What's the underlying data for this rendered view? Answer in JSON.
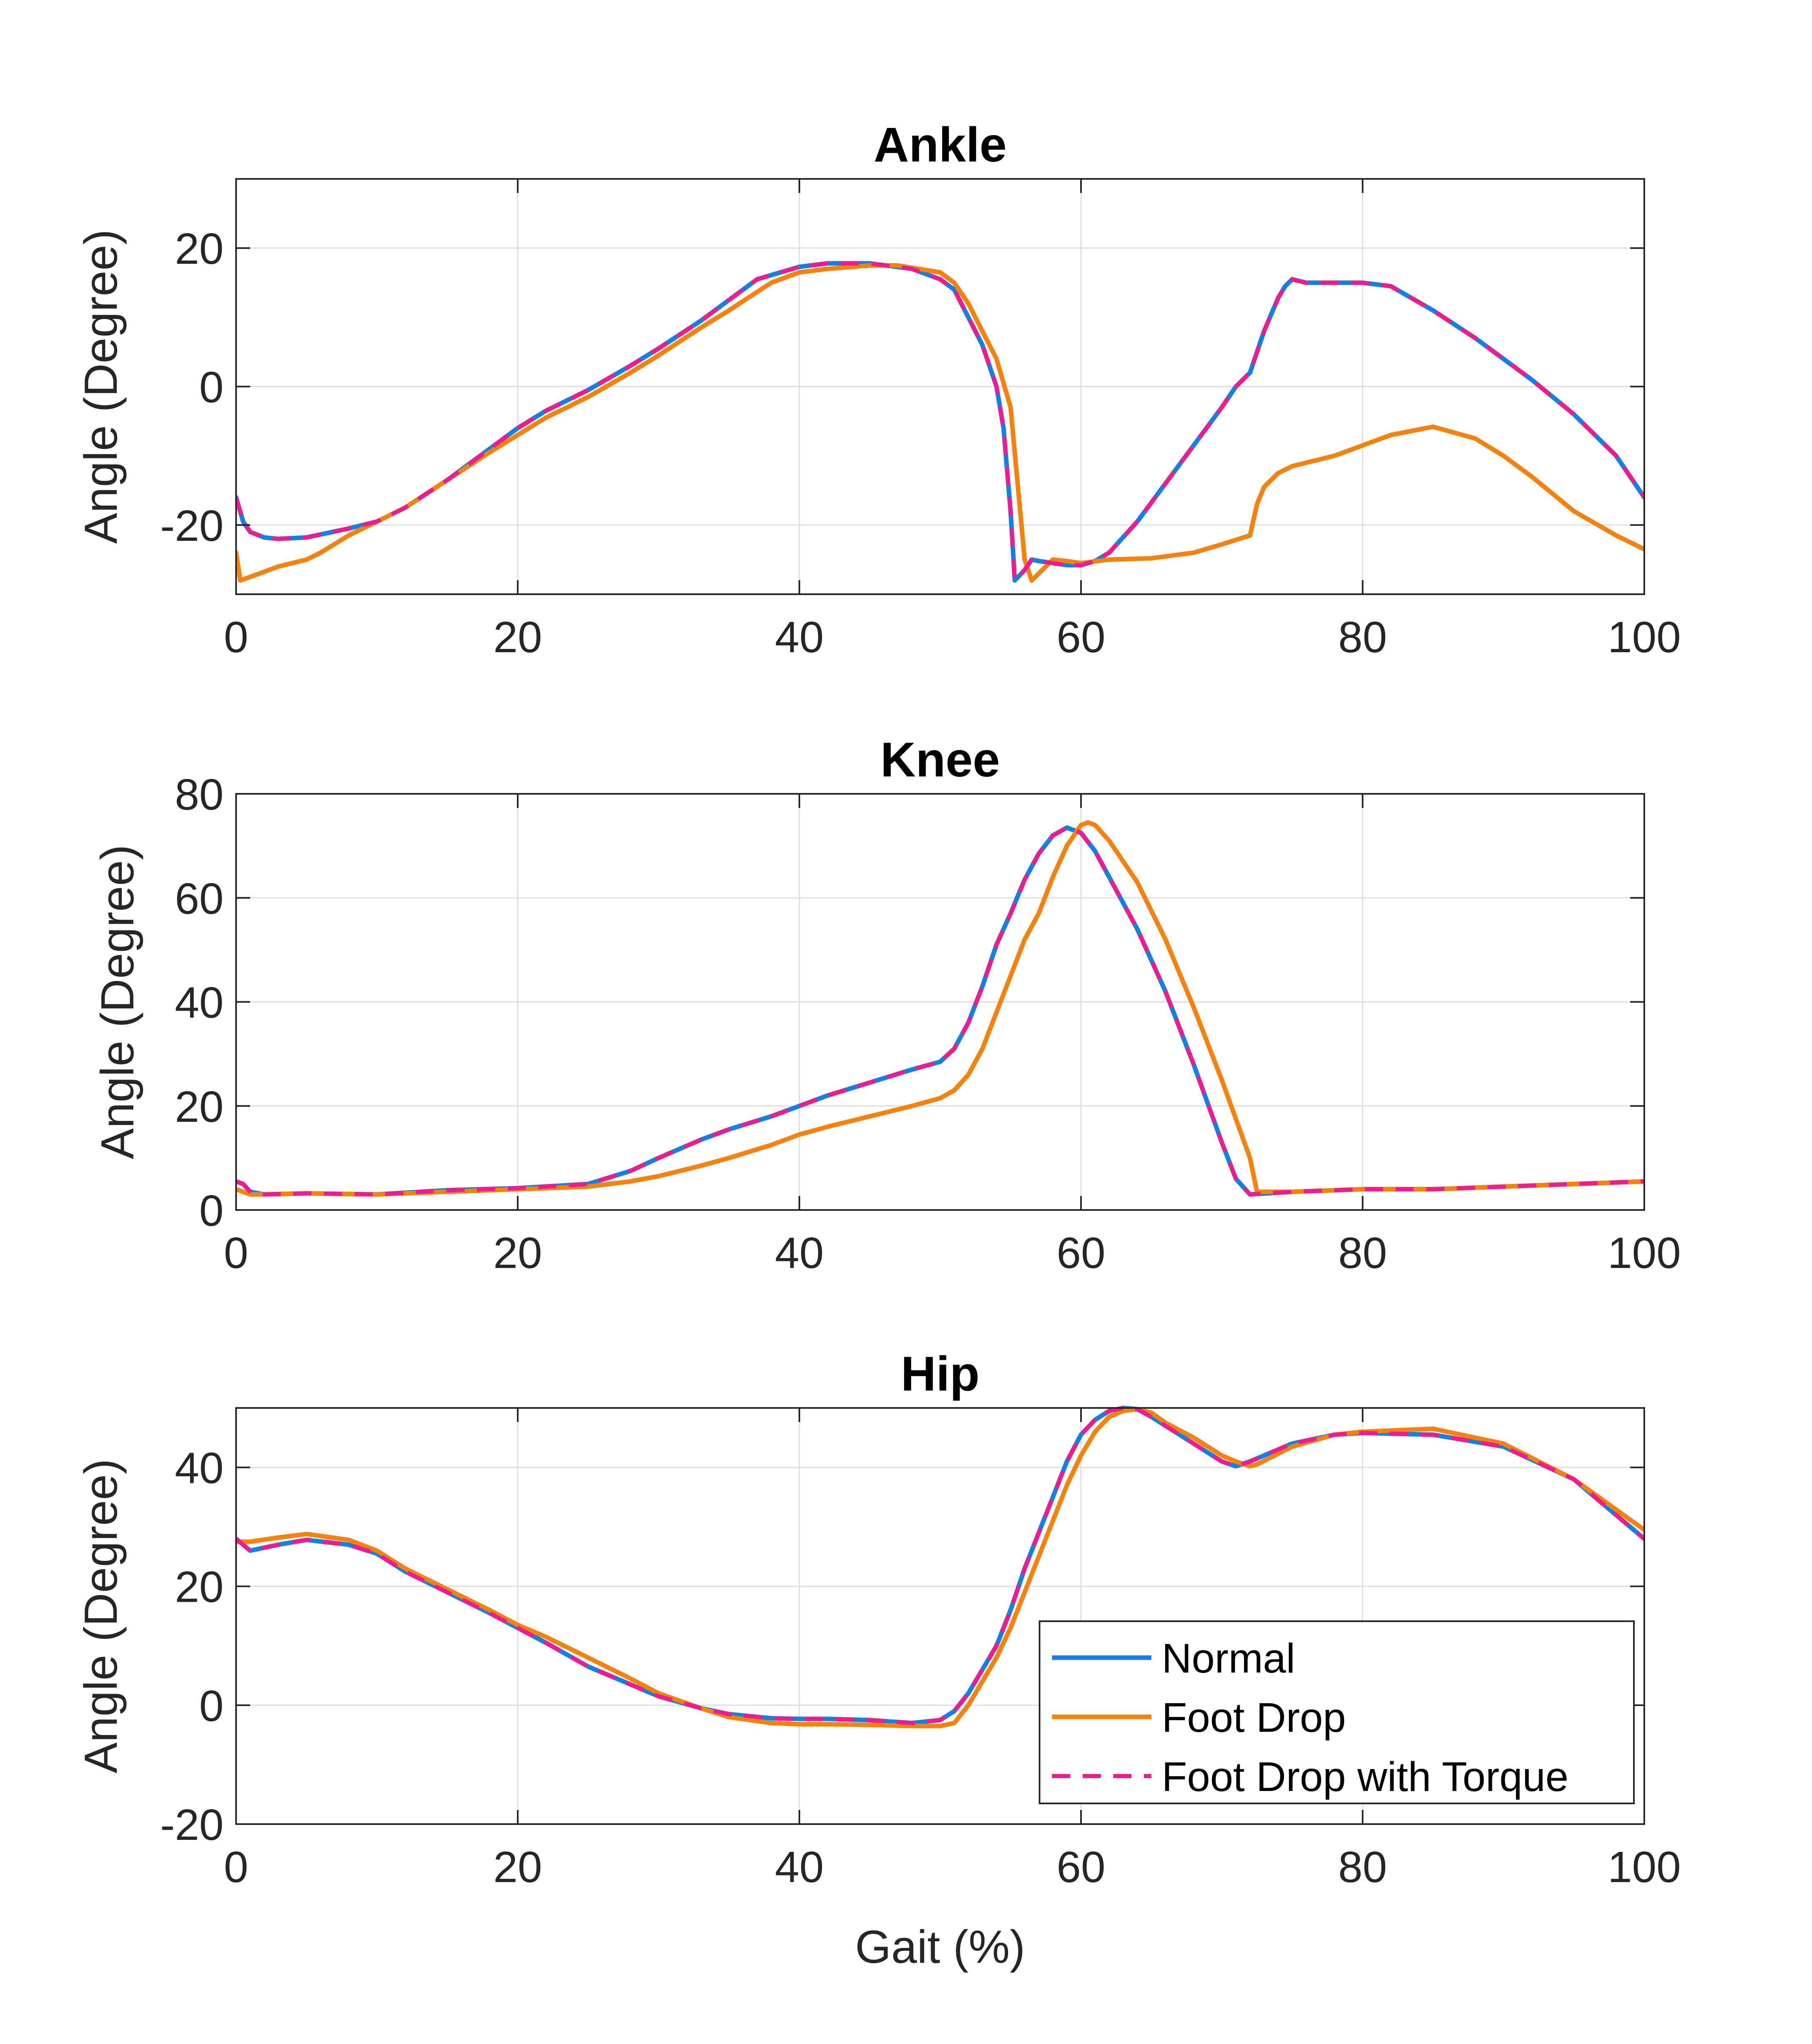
{
  "figure": {
    "xlabel": "Gait (%)"
  },
  "legend": {
    "placement": "bottom-right of Hip panel",
    "items": [
      "Normal",
      "Foot Drop",
      "Foot Drop with Torque"
    ]
  },
  "colors": {
    "normal": "#1a7de3",
    "foot_drop": "#f5820f",
    "foot_drop_torque": "#ee1c8f"
  },
  "chart_data": [
    {
      "type": "line",
      "title": "Ankle",
      "ylabel": "Angle (Degree)",
      "xlim": [
        0,
        100
      ],
      "ylim": [
        -30,
        30
      ],
      "xticks": [
        0,
        20,
        40,
        60,
        80,
        100
      ],
      "yticks": [
        -20,
        0,
        20
      ],
      "grid": true,
      "series": [
        {
          "name": "Normal",
          "x": [
            0,
            0.5,
            1,
            2,
            3,
            5,
            8,
            10,
            12,
            15,
            18,
            20,
            22,
            25,
            28,
            30,
            33,
            35,
            37,
            40,
            42,
            45,
            48,
            50,
            51,
            52,
            53,
            54,
            54.5,
            55,
            55.3,
            56,
            56.5,
            57,
            58,
            59,
            60,
            61,
            62,
            64,
            66,
            68,
            70,
            71,
            72,
            73,
            74,
            74.5,
            75,
            76,
            78,
            80,
            82,
            85,
            88,
            90,
            92,
            95,
            98,
            100
          ],
          "y": [
            -16,
            -19.5,
            -21,
            -21.8,
            -22,
            -21.8,
            -20.5,
            -19.5,
            -17.5,
            -13.5,
            -9,
            -6,
            -3.5,
            -0.5,
            3,
            5.5,
            9.5,
            12.5,
            15.5,
            17.3,
            17.8,
            17.8,
            17,
            15.5,
            14,
            10,
            6,
            0,
            -6,
            -18,
            -28,
            -26.5,
            -25,
            -25.2,
            -25.5,
            -25.8,
            -25.8,
            -25.2,
            -24,
            -19.5,
            -14,
            -8.5,
            -3,
            0,
            2,
            8,
            12.8,
            14.5,
            15.5,
            15,
            15,
            15,
            14.5,
            11,
            7,
            4,
            1,
            -4,
            -10,
            -16
          ]
        },
        {
          "name": "Foot Drop",
          "x": [
            0,
            0.3,
            1,
            3,
            5,
            6,
            8,
            10,
            12,
            15,
            18,
            20,
            22,
            25,
            28,
            30,
            33,
            35,
            38,
            40,
            42,
            45,
            47,
            50,
            51,
            52,
            53,
            54,
            55,
            55.5,
            56,
            56.5,
            57,
            58,
            59,
            60,
            62,
            65,
            68,
            70,
            72,
            72.5,
            73,
            74,
            75,
            78,
            80,
            82,
            85,
            88,
            90,
            92,
            95,
            98,
            100
          ],
          "y": [
            -24,
            -28,
            -27.5,
            -26,
            -25,
            -24,
            -21.5,
            -19.5,
            -17.5,
            -13.5,
            -9.5,
            -7,
            -4.5,
            -1.5,
            2,
            4.5,
            8.5,
            11,
            15,
            16.5,
            17,
            17.5,
            17.5,
            16.5,
            15,
            12,
            8,
            4,
            -3,
            -14,
            -25,
            -28,
            -27,
            -25,
            -25.2,
            -25.5,
            -25,
            -24.8,
            -24,
            -22.8,
            -21.5,
            -17,
            -14.5,
            -12.5,
            -11.5,
            -10,
            -8.5,
            -7,
            -5.8,
            -7.5,
            -10,
            -13,
            -18,
            -21.5,
            -23.5
          ]
        },
        {
          "name": "Foot Drop with Torque",
          "x": [
            0,
            0.5,
            1,
            2,
            3,
            5,
            8,
            10,
            12,
            15,
            18,
            20,
            22,
            25,
            28,
            30,
            33,
            35,
            37,
            40,
            42,
            45,
            48,
            50,
            51,
            52,
            53,
            54,
            54.5,
            55,
            55.3,
            56,
            56.5,
            57,
            58,
            59,
            60,
            61,
            62,
            64,
            66,
            68,
            70,
            71,
            72,
            73,
            74,
            74.5,
            75,
            76,
            78,
            80,
            82,
            85,
            88,
            90,
            92,
            95,
            98,
            100
          ],
          "y": [
            -16,
            -19.5,
            -21,
            -21.8,
            -22,
            -21.8,
            -20.5,
            -19.5,
            -17.5,
            -13.5,
            -9,
            -6,
            -3.5,
            -0.5,
            3,
            5.5,
            9.5,
            12.5,
            15.5,
            17.3,
            17.8,
            17.8,
            17,
            15.5,
            14,
            10,
            6,
            0,
            -6,
            -18,
            -28,
            -26.5,
            -25,
            -25.2,
            -25.5,
            -25.8,
            -25.8,
            -25.2,
            -24,
            -19.5,
            -14,
            -8.5,
            -3,
            0,
            2,
            8,
            12.8,
            14.5,
            15.5,
            15,
            15,
            15,
            14.5,
            11,
            7,
            4,
            1,
            -4,
            -10,
            -16
          ]
        }
      ]
    },
    {
      "type": "line",
      "title": "Knee",
      "ylabel": "Angle (Degree)",
      "xlim": [
        0,
        100
      ],
      "ylim": [
        0,
        80
      ],
      "xticks": [
        0,
        20,
        40,
        60,
        80,
        100
      ],
      "yticks": [
        0,
        20,
        40,
        60,
        80
      ],
      "grid": true,
      "series": [
        {
          "name": "Normal",
          "x": [
            0,
            0.5,
            1,
            2,
            5,
            10,
            15,
            20,
            25,
            28,
            30,
            33,
            35,
            38,
            40,
            42,
            45,
            48,
            50,
            51,
            52,
            53,
            54,
            55,
            56,
            57,
            58,
            59,
            60,
            61,
            62,
            64,
            66,
            68,
            70,
            71,
            72,
            75,
            80,
            85,
            90,
            95,
            100
          ],
          "y": [
            5.5,
            5,
            3.5,
            3,
            3.2,
            3,
            3.8,
            4.2,
            5,
            7.5,
            10,
            13.5,
            15.5,
            18,
            20,
            22,
            24.5,
            27,
            28.5,
            31,
            36,
            43,
            51,
            57,
            63.5,
            68.5,
            72,
            73.5,
            72.5,
            69,
            64,
            54,
            42,
            28,
            13,
            6,
            3,
            3.5,
            4,
            4,
            4.5,
            5,
            5.5
          ]
        },
        {
          "name": "Foot Drop",
          "x": [
            0,
            1,
            2,
            5,
            10,
            15,
            20,
            25,
            28,
            30,
            33,
            35,
            38,
            40,
            42,
            45,
            48,
            50,
            51,
            52,
            53,
            54,
            55,
            56,
            57,
            58,
            59,
            60,
            60.5,
            61,
            62,
            64,
            66,
            68,
            70,
            72,
            72.5,
            75,
            80,
            85,
            90,
            95,
            100
          ],
          "y": [
            4,
            3,
            3,
            3.2,
            3,
            3.5,
            4,
            4.5,
            5.5,
            6.5,
            8.5,
            10,
            12.5,
            14.5,
            16,
            18,
            20,
            21.5,
            23,
            26,
            31,
            38,
            45,
            52,
            57,
            64,
            70,
            74,
            74.5,
            74,
            71,
            63,
            52,
            39,
            25,
            10,
            3.5,
            3.5,
            4,
            4,
            4.5,
            5,
            5.5
          ]
        },
        {
          "name": "Foot Drop with Torque",
          "x": [
            0,
            0.5,
            1,
            2,
            5,
            10,
            15,
            20,
            25,
            28,
            30,
            33,
            35,
            38,
            40,
            42,
            45,
            48,
            50,
            51,
            52,
            53,
            54,
            55,
            56,
            57,
            58,
            59,
            60,
            61,
            62,
            64,
            66,
            68,
            70,
            71,
            72,
            75,
            80,
            85,
            90,
            95,
            100
          ],
          "y": [
            5.5,
            5,
            3.5,
            3,
            3.2,
            3,
            3.8,
            4.2,
            5,
            7.5,
            10,
            13.5,
            15.5,
            18,
            20,
            22,
            24.5,
            27,
            28.5,
            31,
            36,
            43,
            51,
            57,
            63.5,
            68.5,
            72,
            73.5,
            72.5,
            69,
            64,
            54,
            42,
            28,
            13,
            6,
            3,
            3.5,
            4,
            4,
            4.5,
            5,
            5.5
          ]
        }
      ]
    },
    {
      "type": "line",
      "title": "Hip",
      "ylabel": "Angle (Degree)",
      "xlim": [
        0,
        100
      ],
      "ylim": [
        -20,
        50
      ],
      "xticks": [
        0,
        20,
        40,
        60,
        80,
        100
      ],
      "yticks": [
        -20,
        0,
        20,
        40
      ],
      "grid": true,
      "series": [
        {
          "name": "Normal",
          "x": [
            0,
            1,
            3,
            5,
            8,
            10,
            12,
            15,
            18,
            20,
            22,
            25,
            28,
            30,
            33,
            35,
            38,
            40,
            42,
            45,
            48,
            50,
            51,
            52,
            53,
            54,
            55,
            56,
            57,
            58,
            59,
            60,
            61,
            62,
            63,
            64,
            65,
            66,
            68,
            70,
            71,
            72,
            75,
            78,
            80,
            85,
            90,
            95,
            100
          ],
          "y": [
            28,
            26,
            27,
            27.8,
            27,
            25.5,
            22.5,
            19,
            15.5,
            13,
            10.5,
            6.5,
            3.5,
            1.5,
            -0.5,
            -1.5,
            -2.2,
            -2.3,
            -2.3,
            -2.5,
            -3,
            -2.5,
            -1,
            2,
            6,
            10,
            16,
            23,
            29,
            35,
            41,
            45.5,
            48,
            49.5,
            50,
            49.8,
            48.5,
            47,
            44,
            41,
            40.2,
            41,
            44,
            45.5,
            45.8,
            45.5,
            43.5,
            38,
            28
          ]
        },
        {
          "name": "Foot Drop",
          "x": [
            0,
            1,
            3,
            5,
            8,
            10,
            12,
            15,
            18,
            20,
            22,
            25,
            28,
            30,
            33,
            35,
            38,
            40,
            42,
            45,
            48,
            50,
            51,
            52,
            53,
            54,
            55,
            56,
            57,
            58,
            59,
            60,
            61,
            62,
            63,
            64,
            65,
            66,
            68,
            70,
            71,
            72,
            72.5,
            75,
            78,
            80,
            85,
            90,
            95,
            100
          ],
          "y": [
            27.5,
            27.5,
            28.2,
            28.8,
            27.8,
            26,
            23,
            19.5,
            16,
            13.5,
            11.5,
            8,
            4.5,
            2,
            -0.5,
            -2,
            -3,
            -3.2,
            -3.2,
            -3.3,
            -3.5,
            -3.5,
            -3,
            0,
            4,
            8,
            13,
            19,
            25,
            31,
            37,
            42,
            46,
            48.5,
            49.5,
            49.8,
            49.2,
            47.5,
            45,
            42,
            41,
            40.2,
            40.5,
            43.5,
            45.5,
            46,
            46.5,
            44,
            38,
            29.5
          ]
        },
        {
          "name": "Foot Drop with Torque",
          "x": [
            0,
            1,
            3,
            5,
            8,
            10,
            12,
            15,
            18,
            20,
            22,
            25,
            28,
            30,
            33,
            35,
            38,
            40,
            42,
            45,
            48,
            50,
            51,
            52,
            53,
            54,
            55,
            56,
            57,
            58,
            59,
            60,
            61,
            62,
            63,
            64,
            65,
            66,
            68,
            70,
            71,
            72,
            75,
            78,
            80,
            85,
            90,
            95,
            100
          ],
          "y": [
            28,
            26,
            27,
            27.8,
            27,
            25.5,
            22.5,
            19,
            15.5,
            13,
            10.5,
            6.5,
            3.5,
            1.5,
            -0.5,
            -1.5,
            -2.2,
            -2.3,
            -2.3,
            -2.5,
            -3,
            -2.5,
            -1,
            2,
            6,
            10,
            16,
            23,
            29,
            35,
            41,
            45.5,
            48,
            49.5,
            50,
            49.8,
            48.5,
            47,
            44,
            41,
            40.2,
            41,
            44,
            45.5,
            45.8,
            45.5,
            43.5,
            38,
            28
          ]
        }
      ]
    }
  ]
}
